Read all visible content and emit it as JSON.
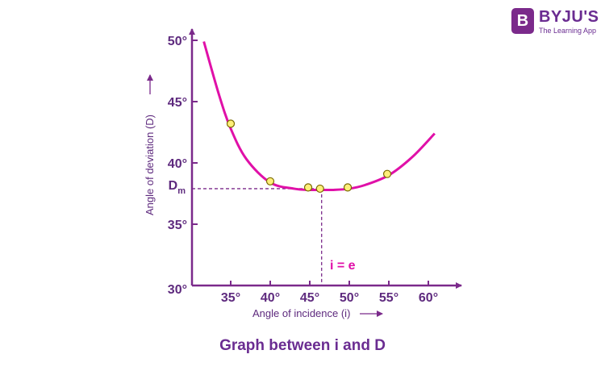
{
  "brand": {
    "badge": "B",
    "name": "BYJU'S",
    "tagline": "The Learning App"
  },
  "caption": "Graph between i and D",
  "colors": {
    "axis": "#7b2a8b",
    "curve": "#e010a8",
    "point_fill": "#ffef7a",
    "point_stroke": "#7a6a00",
    "text": "#5e2a7e"
  },
  "chart_data": {
    "type": "line",
    "title": "Graph between i and D",
    "xlabel": "Angle of incidence (i)",
    "ylabel": "Angle of deviation (D)",
    "x_tick_labels": [
      "35°",
      "40°",
      "45°",
      "50°",
      "55°",
      "60°"
    ],
    "x_ticks": [
      35,
      40,
      45,
      50,
      55,
      60
    ],
    "y_tick_labels": [
      "30°",
      "35°",
      "40°",
      "45°",
      "50°"
    ],
    "y_ticks": [
      30,
      35,
      40,
      45,
      50
    ],
    "xlim": [
      30,
      62
    ],
    "ylim": [
      30,
      50
    ],
    "grid": false,
    "series": [
      {
        "x": [
          31.6,
          33.5,
          35,
          37,
          40,
          43,
          45,
          46.5,
          48,
          50,
          52,
          55,
          58,
          60.8
        ],
        "y": [
          49.9,
          45.6,
          42.8,
          40.3,
          38.4,
          37.9,
          37.8,
          37.8,
          37.8,
          37.9,
          38.2,
          39.0,
          40.5,
          42.4
        ]
      }
    ],
    "points": {
      "x": [
        35,
        40,
        44.8,
        46.3,
        49.8,
        54.8
      ],
      "y": [
        43.2,
        38.5,
        38.0,
        37.9,
        38.0,
        39.1
      ]
    },
    "minimum": {
      "x": 46.5,
      "y": 37.9,
      "y_label": "D",
      "y_label_sub": "m",
      "x_label": "i = e"
    }
  }
}
